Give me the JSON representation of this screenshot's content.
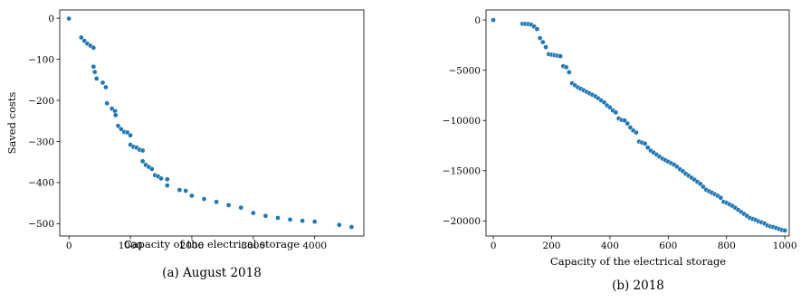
{
  "figure": {
    "captions": [
      "(a) August 2018",
      "(b) 2018"
    ]
  },
  "chart_data": [
    {
      "type": "scatter",
      "caption": "(a) August 2018",
      "xlabel": "Capacity of the electrical storage",
      "ylabel": "Saved costs",
      "xlim": [
        -150,
        4800
      ],
      "ylim": [
        -530,
        20
      ],
      "xticks": [
        0,
        1000,
        2000,
        3000,
        4000
      ],
      "yticks": [
        0,
        -100,
        -200,
        -300,
        -400,
        -500
      ],
      "color": "#1f77b4",
      "grid": false,
      "legend": "none",
      "points": [
        [
          0,
          -1
        ],
        [
          200,
          -47
        ],
        [
          250,
          -55
        ],
        [
          300,
          -62
        ],
        [
          350,
          -67
        ],
        [
          400,
          -72
        ],
        [
          400,
          -118
        ],
        [
          420,
          -131
        ],
        [
          450,
          -147
        ],
        [
          550,
          -157
        ],
        [
          600,
          -168
        ],
        [
          620,
          -207
        ],
        [
          700,
          -220
        ],
        [
          750,
          -226
        ],
        [
          760,
          -236
        ],
        [
          800,
          -262
        ],
        [
          850,
          -270
        ],
        [
          900,
          -277
        ],
        [
          950,
          -278
        ],
        [
          1000,
          -285
        ],
        [
          1000,
          -308
        ],
        [
          1050,
          -313
        ],
        [
          1100,
          -315
        ],
        [
          1150,
          -320
        ],
        [
          1200,
          -322
        ],
        [
          1200,
          -348
        ],
        [
          1250,
          -357
        ],
        [
          1300,
          -362
        ],
        [
          1350,
          -367
        ],
        [
          1400,
          -382
        ],
        [
          1450,
          -385
        ],
        [
          1500,
          -390
        ],
        [
          1600,
          -392
        ],
        [
          1600,
          -407
        ],
        [
          1800,
          -418
        ],
        [
          1900,
          -420
        ],
        [
          2000,
          -432
        ],
        [
          2200,
          -440
        ],
        [
          2400,
          -447
        ],
        [
          2600,
          -455
        ],
        [
          2800,
          -461
        ],
        [
          3000,
          -474
        ],
        [
          3200,
          -481
        ],
        [
          3400,
          -486
        ],
        [
          3600,
          -490
        ],
        [
          3800,
          -493
        ],
        [
          4000,
          -495
        ],
        [
          4400,
          -503
        ],
        [
          4600,
          -508
        ]
      ]
    },
    {
      "type": "scatter",
      "caption": "(b) 2018",
      "xlabel": "Capacity of the electrical storage",
      "ylabel": "",
      "xlim": [
        -25,
        1015
      ],
      "ylim": [
        -21500,
        1000
      ],
      "xticks": [
        0,
        200,
        400,
        600,
        800,
        1000
      ],
      "yticks": [
        0,
        -5000,
        -10000,
        -15000,
        -20000
      ],
      "color": "#1f77b4",
      "grid": false,
      "legend": "none",
      "points": [
        [
          0,
          0
        ],
        [
          100,
          -380
        ],
        [
          110,
          -390
        ],
        [
          120,
          -400
        ],
        [
          130,
          -470
        ],
        [
          140,
          -650
        ],
        [
          150,
          -900
        ],
        [
          160,
          -1800
        ],
        [
          170,
          -2200
        ],
        [
          180,
          -2700
        ],
        [
          190,
          -3400
        ],
        [
          200,
          -3450
        ],
        [
          210,
          -3500
        ],
        [
          220,
          -3550
        ],
        [
          230,
          -3600
        ],
        [
          240,
          -4600
        ],
        [
          250,
          -4700
        ],
        [
          260,
          -5200
        ],
        [
          270,
          -6300
        ],
        [
          280,
          -6500
        ],
        [
          290,
          -6700
        ],
        [
          300,
          -6850
        ],
        [
          310,
          -7000
        ],
        [
          320,
          -7150
        ],
        [
          330,
          -7300
        ],
        [
          340,
          -7450
        ],
        [
          350,
          -7600
        ],
        [
          360,
          -7800
        ],
        [
          370,
          -8000
        ],
        [
          380,
          -8200
        ],
        [
          390,
          -8500
        ],
        [
          400,
          -8700
        ],
        [
          410,
          -9000
        ],
        [
          420,
          -9200
        ],
        [
          430,
          -9800
        ],
        [
          440,
          -9950
        ],
        [
          450,
          -10000
        ],
        [
          460,
          -10300
        ],
        [
          470,
          -10700
        ],
        [
          480,
          -11000
        ],
        [
          490,
          -11200
        ],
        [
          500,
          -12100
        ],
        [
          510,
          -12200
        ],
        [
          520,
          -12300
        ],
        [
          530,
          -12700
        ],
        [
          540,
          -13000
        ],
        [
          550,
          -13200
        ],
        [
          560,
          -13400
        ],
        [
          570,
          -13600
        ],
        [
          580,
          -13800
        ],
        [
          590,
          -13950
        ],
        [
          600,
          -14100
        ],
        [
          610,
          -14250
        ],
        [
          620,
          -14400
        ],
        [
          630,
          -14600
        ],
        [
          640,
          -14850
        ],
        [
          650,
          -15050
        ],
        [
          660,
          -15300
        ],
        [
          670,
          -15500
        ],
        [
          680,
          -15700
        ],
        [
          690,
          -15900
        ],
        [
          700,
          -16100
        ],
        [
          710,
          -16300
        ],
        [
          720,
          -16600
        ],
        [
          730,
          -16900
        ],
        [
          740,
          -17050
        ],
        [
          750,
          -17200
        ],
        [
          760,
          -17350
        ],
        [
          770,
          -17500
        ],
        [
          780,
          -17700
        ],
        [
          790,
          -18100
        ],
        [
          800,
          -18200
        ],
        [
          810,
          -18350
        ],
        [
          820,
          -18500
        ],
        [
          830,
          -18700
        ],
        [
          840,
          -18900
        ],
        [
          850,
          -19100
        ],
        [
          860,
          -19300
        ],
        [
          870,
          -19500
        ],
        [
          880,
          -19700
        ],
        [
          890,
          -19800
        ],
        [
          900,
          -19900
        ],
        [
          910,
          -20050
        ],
        [
          920,
          -20150
        ],
        [
          930,
          -20250
        ],
        [
          940,
          -20450
        ],
        [
          950,
          -20550
        ],
        [
          960,
          -20600
        ],
        [
          970,
          -20700
        ],
        [
          980,
          -20800
        ],
        [
          990,
          -20900
        ],
        [
          1000,
          -20950
        ]
      ]
    }
  ]
}
